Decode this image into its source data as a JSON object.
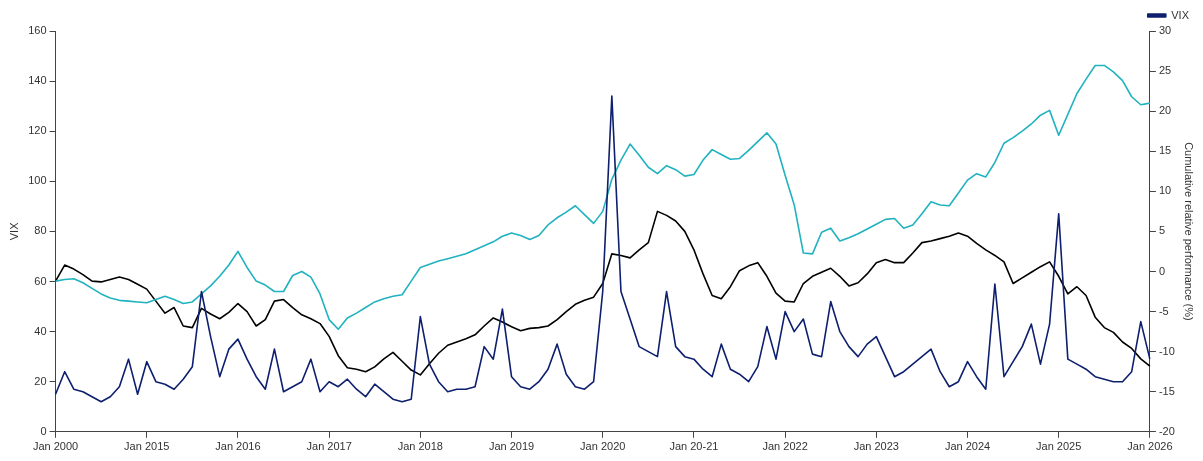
{
  "chart_data": {
    "type": "line",
    "ylabel": "VIX",
    "y2label": "Cumulative relative performance (%)",
    "categories": [
      "Jan 2000",
      null,
      null,
      null,
      null,
      null,
      null,
      null,
      null,
      null,
      "Jan 2015",
      null,
      null,
      null,
      null,
      null,
      null,
      null,
      null,
      null,
      "Jan 2016",
      null,
      null,
      null,
      null,
      null,
      null,
      null,
      null,
      null,
      "Jan 2017",
      null,
      null,
      null,
      null,
      null,
      null,
      null,
      null,
      null,
      "Jan 2018",
      null,
      null,
      null,
      null,
      null,
      null,
      null,
      null,
      null,
      "Jan 2019",
      null,
      null,
      null,
      null,
      null,
      null,
      null,
      null,
      null,
      "Jan 2020",
      null,
      null,
      null,
      null,
      null,
      null,
      null,
      null,
      null,
      "Jan 20-21",
      null,
      null,
      null,
      null,
      null,
      null,
      null,
      null,
      null,
      "Jan 2022",
      null,
      null,
      null,
      null,
      null,
      null,
      null,
      null,
      null,
      "Jan 2023",
      null,
      null,
      null,
      null,
      null,
      null,
      null,
      null,
      null,
      "Jan 2024",
      null,
      null,
      null,
      null,
      null,
      null,
      null,
      null,
      null,
      "Jan 2025",
      null,
      null,
      null,
      null,
      null,
      null,
      null,
      null,
      null,
      "Jan 2026"
    ],
    "ylim": [
      0,
      160
    ],
    "yticks": [
      0,
      20,
      40,
      60,
      80,
      100,
      120,
      140,
      160
    ],
    "y2lim": [
      -20,
      30
    ],
    "y2ticks": [
      -20,
      -15,
      -10,
      -5,
      0,
      5,
      10,
      15,
      20,
      25,
      30
    ],
    "grid": false,
    "legend": "top right",
    "marker": "none",
    "line_style": "solid",
    "series": [
      {
        "name": "VIX",
        "color": "#0d1f6e",
        "values": [
          15,
          24,
          17,
          16,
          14,
          12,
          14,
          18,
          29,
          15,
          28,
          20,
          19,
          17,
          21,
          26,
          56,
          38,
          22,
          33,
          37,
          29,
          22,
          17,
          33,
          16,
          18,
          20,
          29,
          16,
          20,
          18,
          21,
          17,
          14,
          19,
          16,
          13,
          12,
          13,
          46,
          27,
          20,
          16,
          17,
          17,
          18,
          34,
          29,
          49,
          22,
          18,
          17,
          20,
          25,
          35,
          23,
          18,
          17,
          20,
          56,
          134,
          56,
          45,
          34,
          32,
          30,
          56,
          34,
          30,
          29,
          25,
          22,
          35,
          25,
          23,
          20,
          26,
          42,
          29,
          48,
          40,
          45,
          31,
          30,
          52,
          40,
          34,
          30,
          35,
          38,
          30,
          22,
          24,
          27,
          30,
          33,
          24,
          18,
          20,
          28,
          22,
          17,
          59,
          22,
          28,
          34,
          43,
          27,
          43,
          87,
          29,
          27,
          25,
          22,
          21,
          20,
          20,
          24,
          44,
          29
        ]
      },
      {
        "color": "#20b2bf",
        "axis": "y2",
        "values": [
          -1.2,
          -1.0,
          -0.9,
          -1.4,
          -2.1,
          -2.8,
          -3.3,
          -3.6,
          -3.7,
          -3.8,
          -3.9,
          -3.5,
          -3.1,
          -3.5,
          -4.0,
          -3.8,
          -2.8,
          -1.8,
          -0.6,
          0.8,
          2.5,
          0.5,
          -1.2,
          -1.7,
          -2.5,
          -2.5,
          -0.5,
          0.0,
          -0.7,
          -2.8,
          -6.0,
          -7.2,
          -5.8,
          -5.2,
          -4.5,
          -3.8,
          -3.4,
          -3.1,
          -2.9,
          -1.2,
          0.5,
          0.9,
          1.3,
          1.6,
          1.9,
          2.2,
          2.7,
          3.2,
          3.7,
          4.4,
          4.8,
          4.5,
          4.0,
          4.5,
          5.8,
          6.7,
          7.4,
          8.2,
          7.1,
          6.0,
          7.5,
          11.5,
          13.9,
          15.9,
          14.5,
          13.0,
          12.2,
          13.2,
          12.7,
          11.9,
          12.1,
          13.9,
          15.2,
          14.6,
          14.0,
          14.1,
          15.1,
          16.2,
          17.3,
          15.9,
          12.0,
          8.3,
          2.3,
          2.2,
          4.9,
          5.4,
          3.8,
          4.2,
          4.7,
          5.3,
          5.9,
          6.5,
          6.6,
          5.4,
          5.8,
          7.2,
          8.7,
          8.3,
          8.2,
          9.8,
          11.4,
          12.2,
          11.8,
          13.6,
          16.0,
          16.7,
          17.5,
          18.4,
          19.5,
          20.1,
          17.0,
          19.6,
          22.2,
          24.0,
          25.7,
          25.7,
          24.9,
          23.8,
          21.8,
          20.8,
          21.0
        ]
      },
      {
        "color": "#000000",
        "axis": "y2",
        "values": [
          -1.2,
          0.8,
          0.3,
          -0.4,
          -1.2,
          -1.3,
          -1.0,
          -0.7,
          -1.0,
          -1.6,
          -2.2,
          -3.7,
          -5.2,
          -4.5,
          -6.8,
          -7.0,
          -4.6,
          -5.3,
          -5.9,
          -5.1,
          -4.0,
          -5.0,
          -6.8,
          -6.0,
          -3.7,
          -3.5,
          -4.5,
          -5.4,
          -5.9,
          -6.5,
          -8.1,
          -10.5,
          -12.0,
          -12.2,
          -12.5,
          -11.9,
          -10.9,
          -10.1,
          -11.2,
          -12.3,
          -12.9,
          -11.5,
          -10.2,
          -9.2,
          -8.8,
          -8.4,
          -7.9,
          -6.8,
          -5.8,
          -6.3,
          -6.9,
          -7.4,
          -7.1,
          -7.0,
          -6.8,
          -6.0,
          -5.0,
          -4.1,
          -3.6,
          -3.2,
          -1.5,
          2.2,
          2.0,
          1.7,
          2.7,
          3.6,
          7.5,
          7.0,
          6.3,
          5.0,
          2.7,
          -0.3,
          -3.0,
          -3.4,
          -1.9,
          0.1,
          0.7,
          1.1,
          -0.6,
          -2.7,
          -3.7,
          -3.8,
          -1.5,
          -0.6,
          -0.1,
          0.4,
          -0.6,
          -1.8,
          -1.4,
          -0.3,
          1.1,
          1.5,
          1.1,
          1.1,
          2.3,
          3.6,
          3.8,
          4.1,
          4.4,
          4.8,
          4.4,
          3.5,
          2.7,
          2.0,
          1.2,
          -1.5,
          -0.8,
          -0.1,
          0.6,
          1.2,
          -0.6,
          -2.8,
          -1.9,
          -3.0,
          -5.7,
          -7.0,
          -7.6,
          -8.8,
          -9.6,
          -10.9,
          -11.8
        ]
      }
    ]
  }
}
